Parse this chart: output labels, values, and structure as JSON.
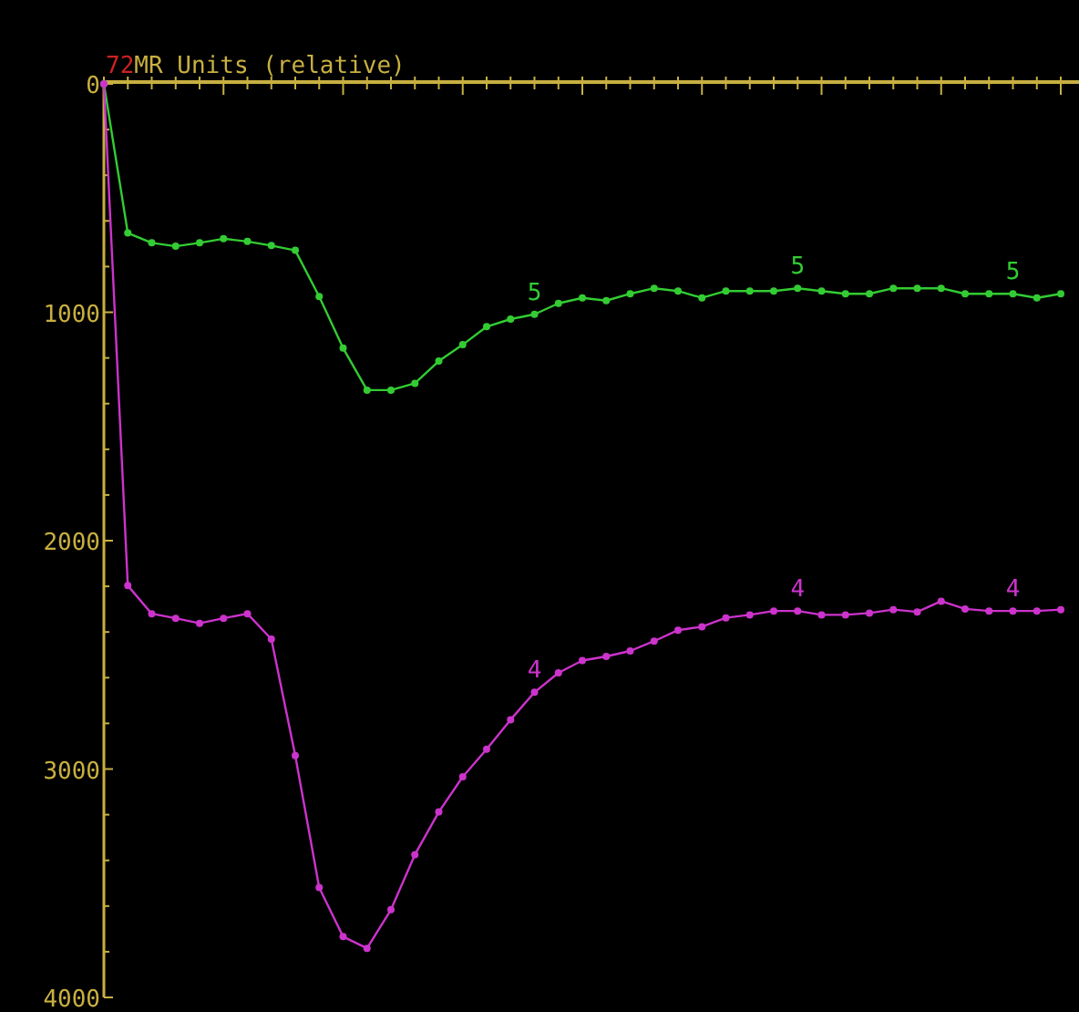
{
  "chart_data": {
    "type": "line",
    "title": "MR Units (relative)",
    "annotations": [
      "72"
    ],
    "categories": [
      null,
      null,
      null,
      null,
      null,
      null,
      null,
      null,
      null,
      null,
      null,
      null,
      null,
      null,
      null,
      null,
      null,
      null,
      null,
      null,
      null,
      null,
      null,
      null,
      null,
      null,
      null,
      null,
      null,
      null,
      null,
      null,
      null,
      null,
      null,
      null,
      null,
      null,
      null,
      null,
      null
    ],
    "series": [
      {
        "name": "5",
        "color": "#33cc33",
        "values": [
          0,
          653,
          696,
          711,
          696,
          678,
          690,
          708,
          729,
          931,
          1157,
          1341,
          1341,
          1311,
          1214,
          1142,
          1063,
          1030,
          1009,
          961,
          937,
          949,
          919,
          895,
          907,
          937,
          907,
          907,
          907,
          895,
          907,
          919,
          919,
          895,
          895,
          895,
          919,
          919,
          919,
          937,
          919
        ]
      },
      {
        "name": "4",
        "color": "#cc33cc",
        "values": [
          0,
          2197,
          2320,
          2340,
          2362,
          2340,
          2320,
          2431,
          2941,
          3519,
          3734,
          3785,
          3616,
          3375,
          3188,
          3034,
          2913,
          2784,
          2664,
          2579,
          2525,
          2507,
          2483,
          2440,
          2392,
          2377,
          2338,
          2325,
          2308,
          2308,
          2325,
          2325,
          2317,
          2302,
          2312,
          2265,
          2299,
          2308,
          2308,
          2308,
          2302
        ]
      }
    ],
    "ylim": [
      4000,
      0
    ],
    "yticks": [
      0,
      {
        "value": 200,
        "label": null
      },
      {
        "value": 400,
        "label": null
      },
      {
        "value": 600,
        "label": null
      },
      {
        "value": 800,
        "label": null
      },
      1000,
      {
        "value": 1200,
        "label": null
      },
      {
        "value": 1400,
        "label": null
      },
      {
        "value": 1600,
        "label": null
      },
      {
        "value": 1800,
        "label": null
      },
      2000,
      {
        "value": 2200,
        "label": null
      },
      {
        "value": 2400,
        "label": null
      },
      {
        "value": 2600,
        "label": null
      },
      {
        "value": 2800,
        "label": null
      },
      3000,
      {
        "value": 3200,
        "label": null
      },
      {
        "value": 3400,
        "label": null
      },
      {
        "value": 3600,
        "label": null
      },
      {
        "value": 3800,
        "label": null
      },
      4000
    ],
    "tick_labels": "y",
    "grid": false,
    "marker": "circle",
    "line_style": "solid"
  }
}
